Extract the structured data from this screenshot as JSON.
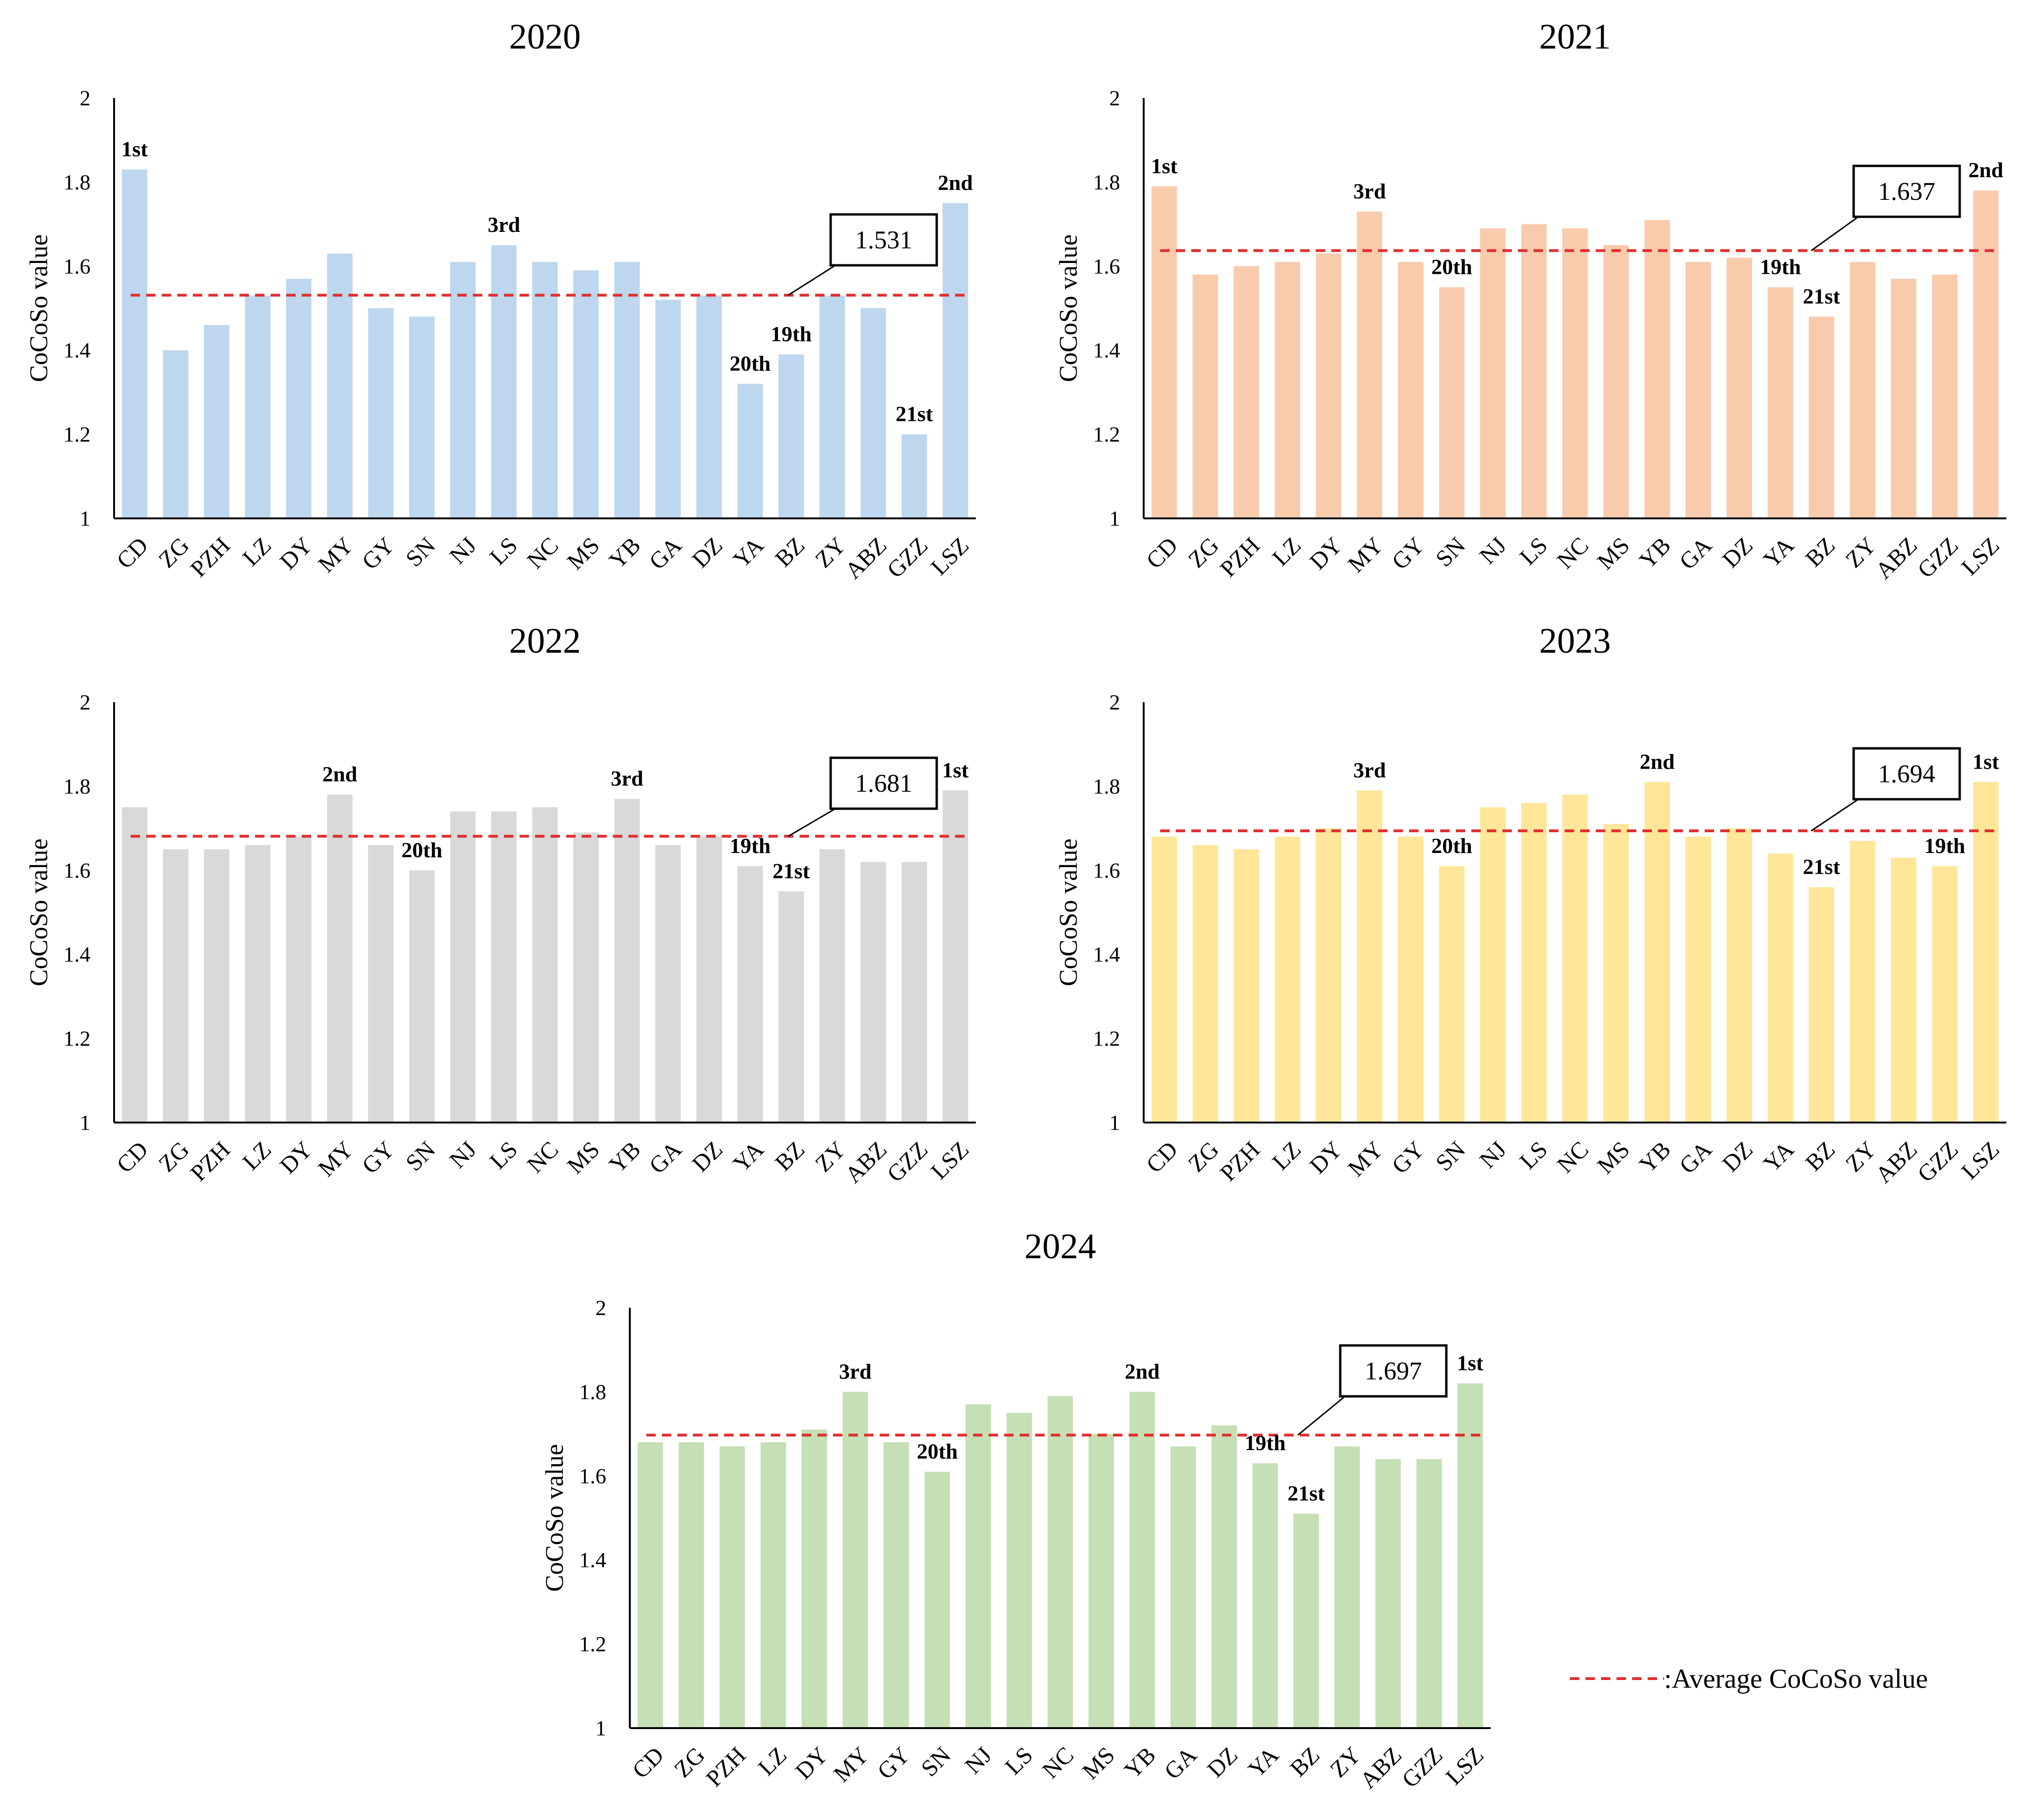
{
  "figure": {
    "categories": [
      "CD",
      "ZG",
      "PZH",
      "LZ",
      "DY",
      "MY",
      "GY",
      "SN",
      "NJ",
      "LS",
      "NC",
      "MS",
      "YB",
      "GA",
      "DZ",
      "YA",
      "BZ",
      "ZY",
      "ABZ",
      "GZZ",
      "LSZ"
    ],
    "ylabel": "CoCoSo value",
    "ylim": [
      1,
      2
    ],
    "yticks": [
      "1",
      "1.2",
      "1.4",
      "1.6",
      "1.8",
      "2"
    ],
    "legend": {
      "label": ":Average CoCoSo value",
      "line_color": "#e03030"
    }
  },
  "chart_data": [
    {
      "type": "bar",
      "title": "2020",
      "ylabel": "CoCoSo value",
      "ylim": [
        1,
        2
      ],
      "color": "#bdd7ee",
      "categories": [
        "CD",
        "ZG",
        "PZH",
        "LZ",
        "DY",
        "MY",
        "GY",
        "SN",
        "NJ",
        "LS",
        "NC",
        "MS",
        "YB",
        "GA",
        "DZ",
        "YA",
        "BZ",
        "ZY",
        "ABZ",
        "GZZ",
        "LSZ"
      ],
      "values": [
        1.83,
        1.4,
        1.46,
        1.53,
        1.57,
        1.63,
        1.5,
        1.48,
        1.61,
        1.65,
        1.61,
        1.59,
        1.61,
        1.52,
        1.53,
        1.32,
        1.39,
        1.53,
        1.5,
        1.2,
        1.75
      ],
      "average": 1.531,
      "average_label": "1.531",
      "rank_labels": [
        {
          "index": 0,
          "text": "1st"
        },
        {
          "index": 20,
          "text": "2nd"
        },
        {
          "index": 9,
          "text": "3rd"
        },
        {
          "index": 16,
          "text": "19th"
        },
        {
          "index": 15,
          "text": "20th"
        },
        {
          "index": 19,
          "text": "21st"
        }
      ]
    },
    {
      "type": "bar",
      "title": "2021",
      "ylabel": "CoCoSo value",
      "ylim": [
        1,
        2
      ],
      "color": "#f8cbad",
      "categories": [
        "CD",
        "ZG",
        "PZH",
        "LZ",
        "DY",
        "MY",
        "GY",
        "SN",
        "NJ",
        "LS",
        "NC",
        "MS",
        "YB",
        "GA",
        "DZ",
        "YA",
        "BZ",
        "ZY",
        "ABZ",
        "GZZ",
        "LSZ"
      ],
      "values": [
        1.79,
        1.58,
        1.6,
        1.61,
        1.63,
        1.73,
        1.61,
        1.55,
        1.69,
        1.7,
        1.69,
        1.65,
        1.71,
        1.61,
        1.62,
        1.55,
        1.48,
        1.61,
        1.57,
        1.58,
        1.78
      ],
      "average": 1.637,
      "average_label": "1.637",
      "rank_labels": [
        {
          "index": 0,
          "text": "1st"
        },
        {
          "index": 20,
          "text": "2nd"
        },
        {
          "index": 5,
          "text": "3rd"
        },
        {
          "index": 15,
          "text": "19th"
        },
        {
          "index": 7,
          "text": "20th"
        },
        {
          "index": 16,
          "text": "21st"
        }
      ]
    },
    {
      "type": "bar",
      "title": "2022",
      "ylabel": "CoCoSo value",
      "ylim": [
        1,
        2
      ],
      "color": "#d9d9d9",
      "categories": [
        "CD",
        "ZG",
        "PZH",
        "LZ",
        "DY",
        "MY",
        "GY",
        "SN",
        "NJ",
        "LS",
        "NC",
        "MS",
        "YB",
        "GA",
        "DZ",
        "YA",
        "BZ",
        "ZY",
        "ABZ",
        "GZZ",
        "LSZ"
      ],
      "values": [
        1.75,
        1.65,
        1.65,
        1.66,
        1.68,
        1.78,
        1.66,
        1.6,
        1.74,
        1.74,
        1.75,
        1.69,
        1.77,
        1.66,
        1.68,
        1.61,
        1.55,
        1.65,
        1.62,
        1.62,
        1.79
      ],
      "average": 1.681,
      "average_label": "1.681",
      "rank_labels": [
        {
          "index": 20,
          "text": "1st"
        },
        {
          "index": 5,
          "text": "2nd"
        },
        {
          "index": 12,
          "text": "3rd"
        },
        {
          "index": 15,
          "text": "19th"
        },
        {
          "index": 7,
          "text": "20th"
        },
        {
          "index": 16,
          "text": "21st"
        }
      ]
    },
    {
      "type": "bar",
      "title": "2023",
      "ylabel": "CoCoSo value",
      "ylim": [
        1,
        2
      ],
      "color": "#ffe699",
      "categories": [
        "CD",
        "ZG",
        "PZH",
        "LZ",
        "DY",
        "MY",
        "GY",
        "SN",
        "NJ",
        "LS",
        "NC",
        "MS",
        "YB",
        "GA",
        "DZ",
        "YA",
        "BZ",
        "ZY",
        "ABZ",
        "GZZ",
        "LSZ"
      ],
      "values": [
        1.68,
        1.66,
        1.65,
        1.68,
        1.7,
        1.79,
        1.68,
        1.61,
        1.75,
        1.76,
        1.78,
        1.71,
        1.81,
        1.68,
        1.7,
        1.64,
        1.56,
        1.67,
        1.63,
        1.61,
        1.81
      ],
      "average": 1.694,
      "average_label": "1.694",
      "rank_labels": [
        {
          "index": 20,
          "text": "1st"
        },
        {
          "index": 12,
          "text": "2nd"
        },
        {
          "index": 5,
          "text": "3rd"
        },
        {
          "index": 19,
          "text": "19th"
        },
        {
          "index": 7,
          "text": "20th"
        },
        {
          "index": 16,
          "text": "21st"
        }
      ]
    },
    {
      "type": "bar",
      "title": "2024",
      "ylabel": "CoCoSo value",
      "ylim": [
        1,
        2
      ],
      "color": "#c5e0b4",
      "categories": [
        "CD",
        "ZG",
        "PZH",
        "LZ",
        "DY",
        "MY",
        "GY",
        "SN",
        "NJ",
        "LS",
        "NC",
        "MS",
        "YB",
        "GA",
        "DZ",
        "YA",
        "BZ",
        "ZY",
        "ABZ",
        "GZZ",
        "LSZ"
      ],
      "values": [
        1.68,
        1.68,
        1.67,
        1.68,
        1.71,
        1.8,
        1.68,
        1.61,
        1.77,
        1.75,
        1.79,
        1.7,
        1.8,
        1.67,
        1.72,
        1.63,
        1.51,
        1.67,
        1.64,
        1.64,
        1.82
      ],
      "average": 1.697,
      "average_label": "1.697",
      "rank_labels": [
        {
          "index": 20,
          "text": "1st"
        },
        {
          "index": 12,
          "text": "2nd"
        },
        {
          "index": 5,
          "text": "3rd"
        },
        {
          "index": 15,
          "text": "19th"
        },
        {
          "index": 7,
          "text": "20th"
        },
        {
          "index": 16,
          "text": "21st"
        }
      ]
    }
  ]
}
